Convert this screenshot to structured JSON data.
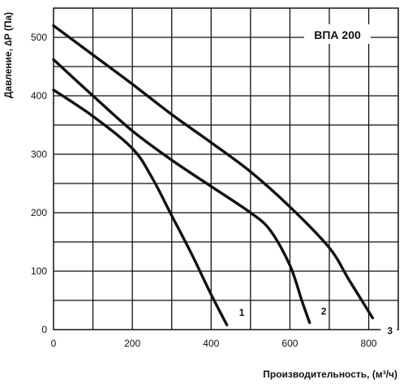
{
  "chart_data": {
    "type": "line",
    "title": "ВПА 200",
    "xlabel": "Производительность, (м³/ч)",
    "ylabel": "Давление, ∆P (Па)",
    "xlim": [
      0,
      875
    ],
    "ylim": [
      0,
      550
    ],
    "x_ticks": [
      0,
      200,
      400,
      600,
      800
    ],
    "y_ticks": [
      0,
      100,
      200,
      300,
      400,
      500
    ],
    "grid": true,
    "series": [
      {
        "name": "1",
        "x": [
          0,
          100,
          200,
          250,
          300,
          350,
          400,
          440
        ],
        "y": [
          410,
          365,
          310,
          260,
          195,
          130,
          60,
          8
        ]
      },
      {
        "name": "2",
        "x": [
          0,
          100,
          200,
          300,
          400,
          500,
          550,
          600,
          630,
          650
        ],
        "y": [
          462,
          400,
          340,
          290,
          245,
          200,
          170,
          110,
          50,
          12
        ]
      },
      {
        "name": "3",
        "x": [
          0,
          100,
          200,
          300,
          400,
          500,
          600,
          700,
          750,
          810
        ],
        "y": [
          520,
          470,
          420,
          368,
          320,
          270,
          210,
          140,
          85,
          20
        ]
      }
    ]
  }
}
